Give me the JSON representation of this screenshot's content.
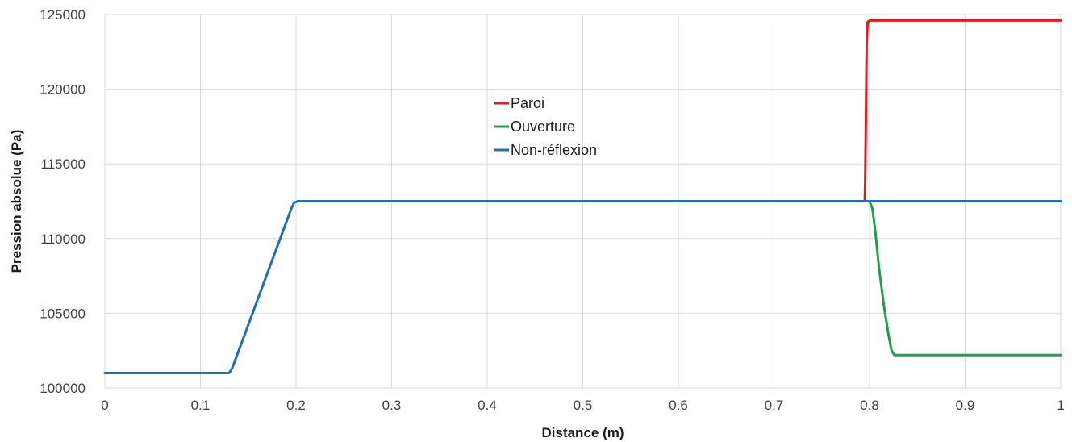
{
  "chart_data": {
    "type": "line",
    "title": "",
    "xlabel": "Distance (m)",
    "ylabel": "Pression absolue (Pa)",
    "xlim": [
      0,
      1
    ],
    "ylim": [
      100000,
      125000
    ],
    "xticks": [
      0,
      0.1,
      0.2,
      0.3,
      0.4,
      0.5,
      0.6,
      0.7,
      0.8,
      0.9,
      1
    ],
    "xtick_labels": [
      "0",
      "0.1",
      "0.2",
      "0.3",
      "0.4",
      "0.5",
      "0.6",
      "0.7",
      "0.8",
      "0.9",
      "1"
    ],
    "yticks": [
      100000,
      105000,
      110000,
      115000,
      120000,
      125000
    ],
    "ytick_labels": [
      "100000",
      "105000",
      "110000",
      "115000",
      "120000",
      "125000"
    ],
    "grid": true,
    "legend_position": "center",
    "series": [
      {
        "name": "Paroi",
        "color": "#e31a1c",
        "x": [
          0.795,
          0.7955,
          0.796,
          0.7965,
          0.797,
          0.798,
          0.8,
          1.0
        ],
        "y": [
          112500,
          114000,
          117000,
          120000,
          123000,
          124500,
          124600,
          124600
        ]
      },
      {
        "name": "Ouverture",
        "color": "#1ea14a",
        "x": [
          0.795,
          0.8,
          0.803,
          0.806,
          0.81,
          0.815,
          0.82,
          0.823,
          0.826,
          0.83,
          1.0
        ],
        "y": [
          112500,
          112500,
          112000,
          110500,
          108000,
          105500,
          103500,
          102500,
          102200,
          102200,
          102200
        ]
      },
      {
        "name": "Non-réflexion",
        "color": "#1f6fb4",
        "x": [
          0,
          0.13,
          0.133,
          0.136,
          0.195,
          0.198,
          0.202,
          1.0
        ],
        "y": [
          101000,
          101000,
          101300,
          101800,
          112000,
          112400,
          112500,
          112500
        ]
      }
    ]
  }
}
